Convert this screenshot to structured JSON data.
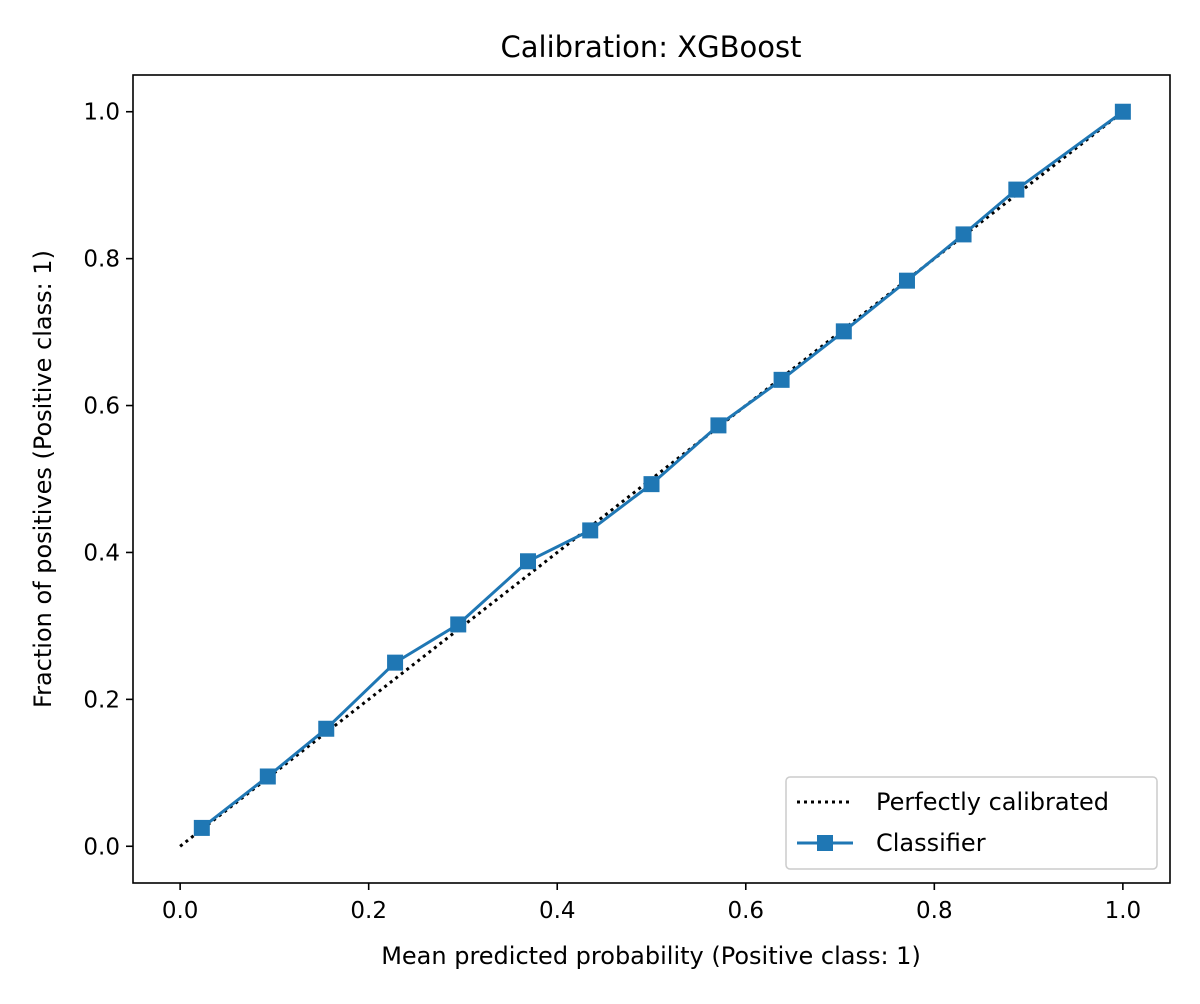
{
  "chart_data": {
    "type": "line",
    "title": "Calibration: XGBoost",
    "xlabel": "Mean predicted probability (Positive class: 1)",
    "ylabel": "Fraction of positives (Positive class: 1)",
    "xlim": [
      -0.05,
      1.05
    ],
    "ylim": [
      -0.05,
      1.05
    ],
    "xticks": [
      "0.0",
      "0.2",
      "0.4",
      "0.6",
      "0.8",
      "1.0"
    ],
    "yticks": [
      "0.0",
      "0.2",
      "0.4",
      "0.6",
      "0.8",
      "1.0"
    ],
    "grid": false,
    "legend_position": "lower right",
    "series": [
      {
        "name": "Perfectly calibrated",
        "style": "dotted",
        "color": "#000000",
        "x": [
          0.0,
          1.0
        ],
        "y": [
          0.0,
          1.0
        ]
      },
      {
        "name": "Classifier",
        "style": "solid",
        "marker": "square",
        "color": "#1f77b4",
        "x": [
          0.023,
          0.093,
          0.155,
          0.228,
          0.295,
          0.369,
          0.435,
          0.5,
          0.571,
          0.638,
          0.704,
          0.771,
          0.831,
          0.887,
          1.0
        ],
        "y": [
          0.025,
          0.095,
          0.16,
          0.25,
          0.302,
          0.388,
          0.43,
          0.493,
          0.573,
          0.635,
          0.701,
          0.77,
          0.833,
          0.894,
          1.0
        ]
      }
    ]
  }
}
